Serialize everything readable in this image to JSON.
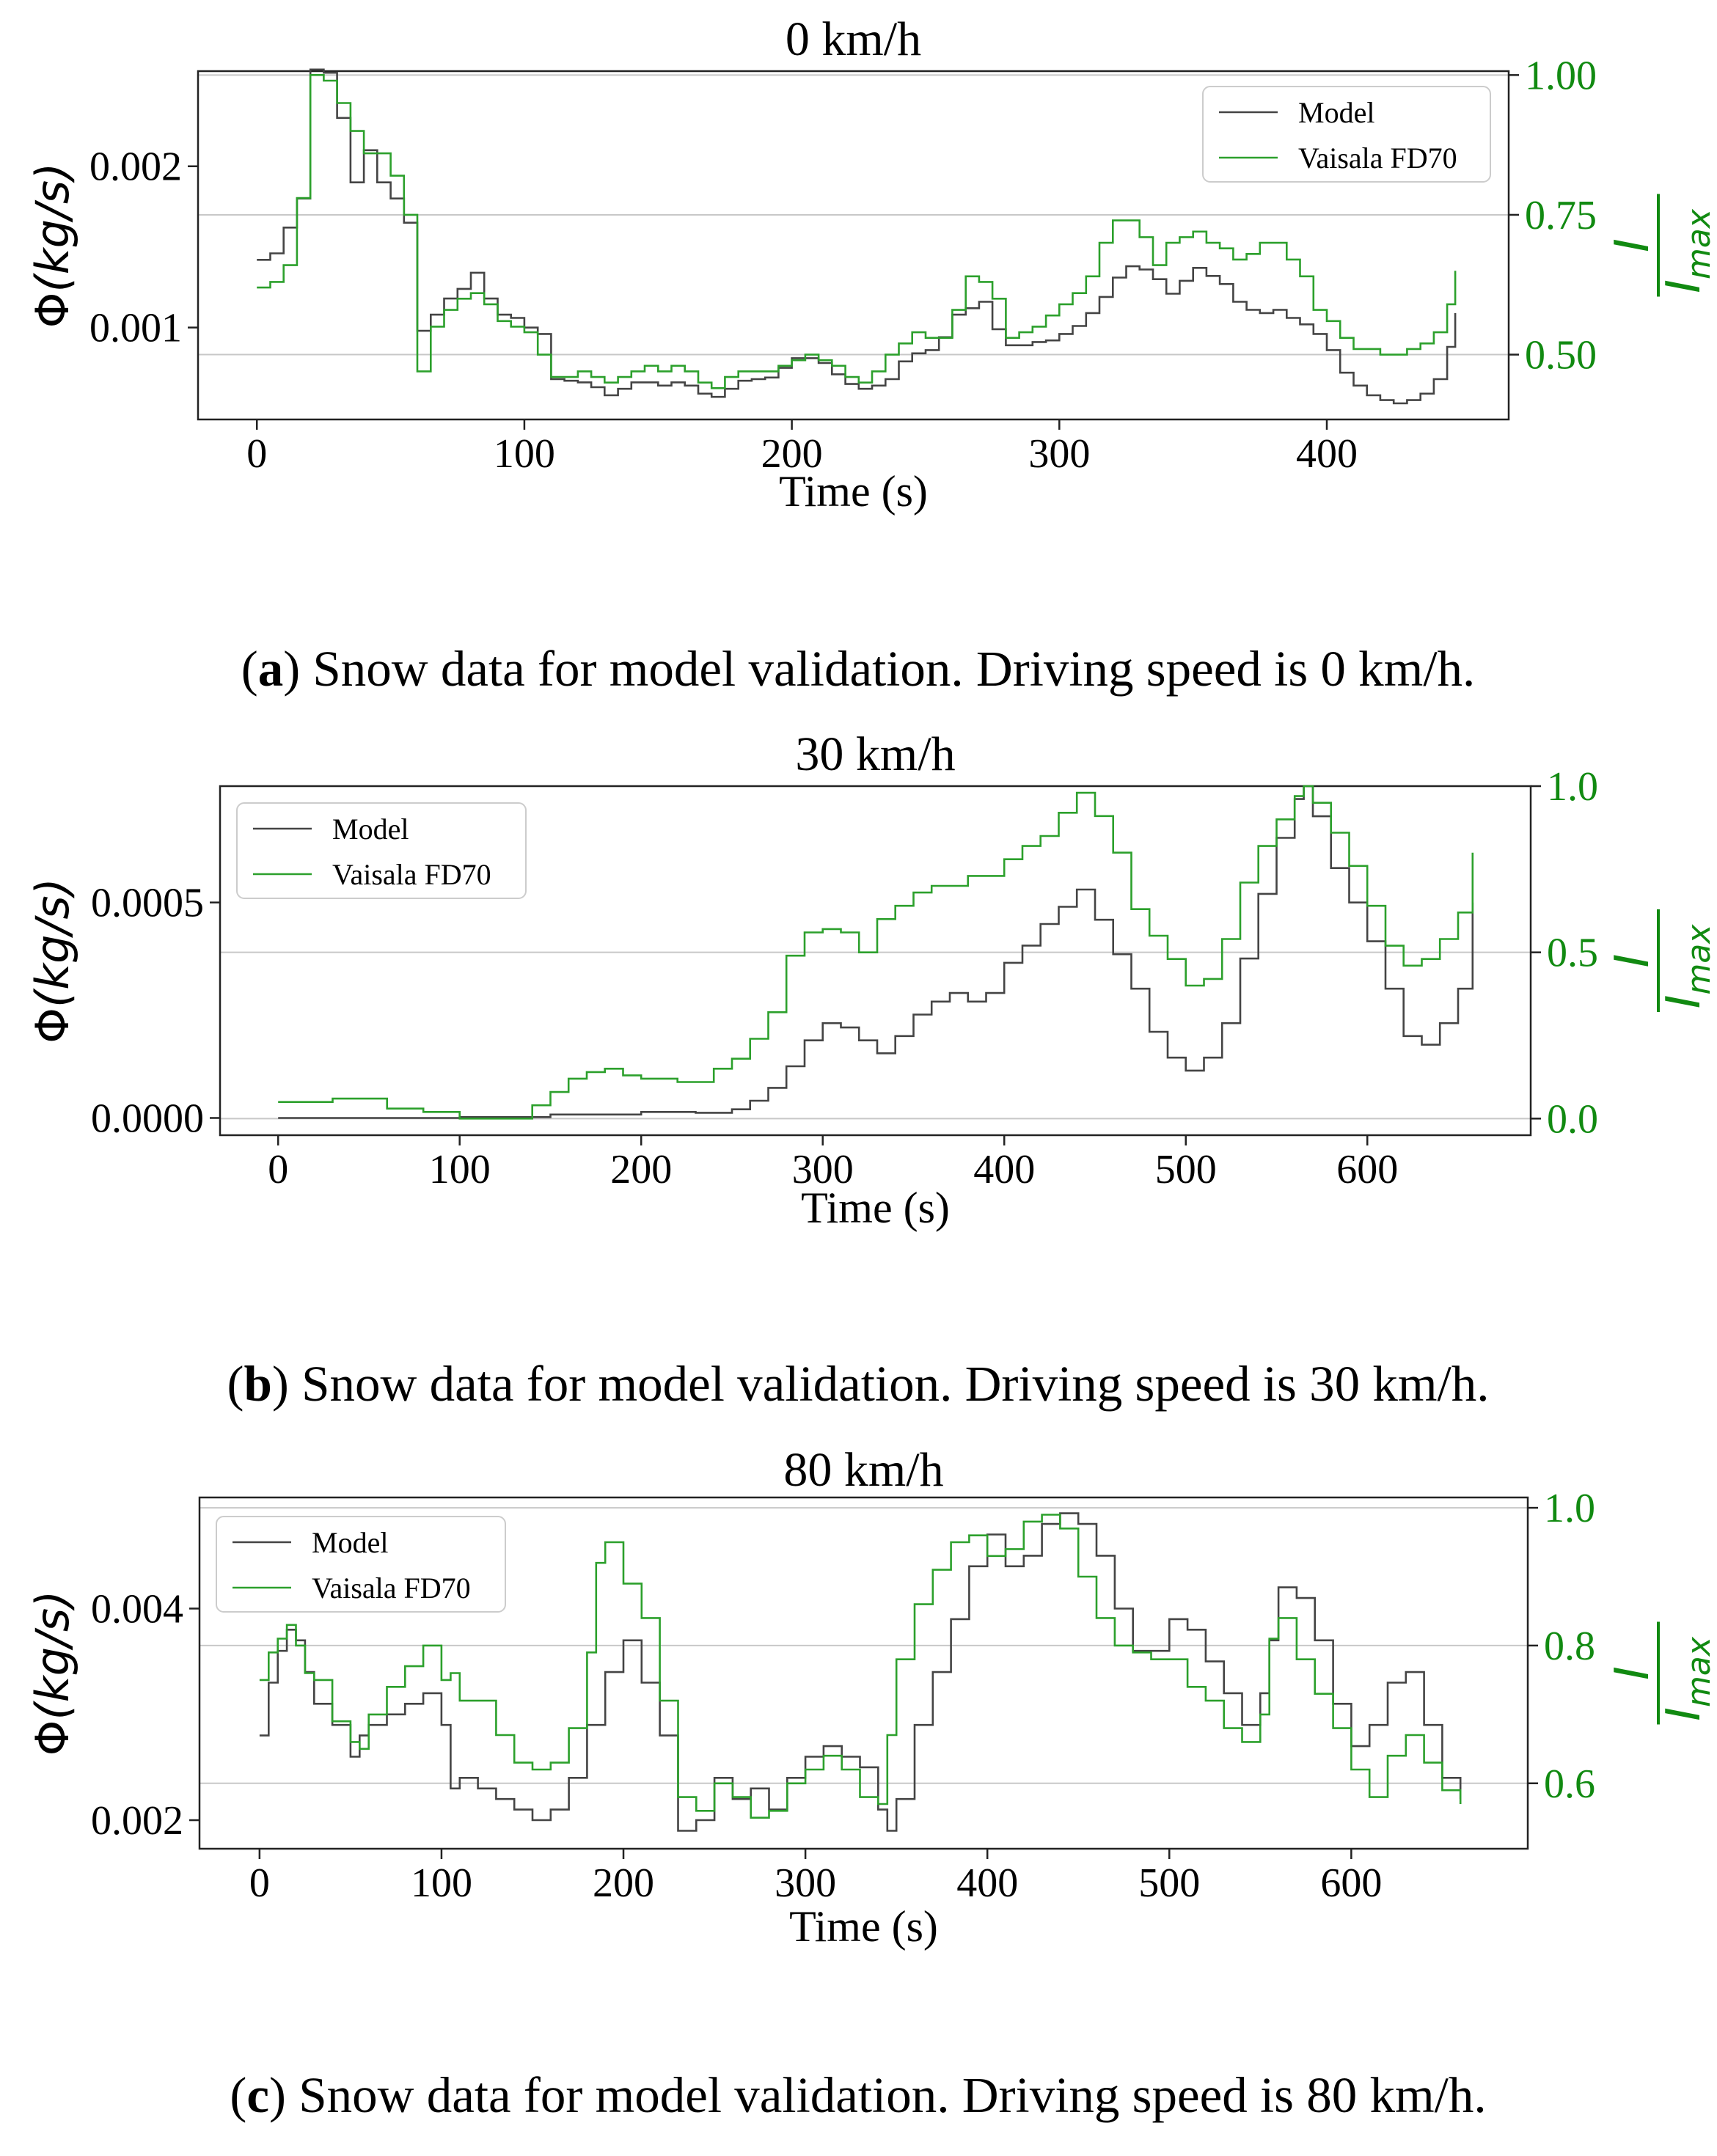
{
  "colors": {
    "model": "#444444",
    "vaisala": "#2ca02c",
    "right_axis": "#118a11",
    "grid": "#c8c8c8"
  },
  "chart_data": [
    {
      "type": "line",
      "title": "0 km/h",
      "xlabel": "Time (s)",
      "ylabel_phi": "Φ",
      "ylabel_unit": "(kg/s)",
      "right_label_num": "I",
      "right_label_den": "I",
      "right_label_sub": "max",
      "caption_label": "a",
      "caption_text": ") Snow data for model validation. Driving speed is 0 km/h.",
      "caption_open": "(",
      "xlim": [
        -22,
        468
      ],
      "ylim": [
        0.00043,
        0.00259
      ],
      "y2lim": [
        0.384,
        1.007
      ],
      "xticks": [
        0,
        100,
        200,
        300,
        400
      ],
      "xtick_labels": [
        "0",
        "100",
        "200",
        "300",
        "400"
      ],
      "yticks": [
        0.001,
        0.002
      ],
      "ytick_labels": [
        "0.001",
        "0.002"
      ],
      "y2ticks": [
        0.5,
        0.75,
        1.0
      ],
      "y2tick_labels": [
        "0.50",
        "0.75",
        "1.00"
      ],
      "legend_position": "upper right",
      "series": [
        {
          "name": "Model",
          "axis": "left",
          "x": [
            0,
            5,
            10,
            15,
            20,
            25,
            30,
            35,
            40,
            45,
            50,
            55,
            60,
            65,
            70,
            75,
            80,
            85,
            90,
            95,
            100,
            105,
            110,
            115,
            120,
            125,
            130,
            135,
            140,
            145,
            150,
            155,
            160,
            165,
            170,
            175,
            180,
            185,
            190,
            195,
            200,
            205,
            210,
            215,
            220,
            225,
            230,
            235,
            240,
            245,
            250,
            255,
            260,
            265,
            270,
            275,
            280,
            285,
            290,
            295,
            300,
            305,
            310,
            315,
            320,
            325,
            330,
            335,
            340,
            345,
            350,
            355,
            360,
            365,
            370,
            375,
            380,
            385,
            390,
            395,
            400,
            405,
            410,
            415,
            420,
            425,
            430,
            435,
            440,
            445,
            448
          ],
          "y": [
            0.00142,
            0.00146,
            0.00162,
            0.0018,
            0.0026,
            0.00258,
            0.0023,
            0.0019,
            0.0021,
            0.0019,
            0.0018,
            0.00165,
            0.00098,
            0.00108,
            0.00118,
            0.00124,
            0.00134,
            0.00118,
            0.00108,
            0.00106,
            0.001,
            0.00096,
            0.00068,
            0.00067,
            0.00066,
            0.00063,
            0.00058,
            0.00062,
            0.00066,
            0.00066,
            0.00064,
            0.00066,
            0.00064,
            0.00059,
            0.00057,
            0.00062,
            0.00067,
            0.00068,
            0.00069,
            0.00075,
            0.00081,
            0.00081,
            0.00078,
            0.00071,
            0.00065,
            0.00062,
            0.00064,
            0.00068,
            0.00079,
            0.00084,
            0.00086,
            0.00094,
            0.00108,
            0.00112,
            0.00116,
            0.00099,
            0.00089,
            0.00089,
            0.00091,
            0.00092,
            0.00096,
            0.00101,
            0.00109,
            0.00119,
            0.00131,
            0.00138,
            0.00136,
            0.0013,
            0.00121,
            0.00129,
            0.00137,
            0.00132,
            0.00127,
            0.00116,
            0.00111,
            0.00109,
            0.00111,
            0.00106,
            0.00102,
            0.00096,
            0.00086,
            0.00072,
            0.00064,
            0.00058,
            0.00055,
            0.00053,
            0.00055,
            0.00059,
            0.00068,
            0.00088,
            0.00109
          ]
        },
        {
          "name": "Vaisala FD70",
          "axis": "right",
          "x": [
            0,
            5,
            10,
            15,
            20,
            25,
            30,
            35,
            40,
            45,
            50,
            55,
            60,
            65,
            70,
            75,
            80,
            85,
            90,
            95,
            100,
            105,
            110,
            115,
            120,
            125,
            130,
            135,
            140,
            145,
            150,
            155,
            160,
            165,
            170,
            175,
            180,
            185,
            190,
            195,
            200,
            205,
            210,
            215,
            220,
            225,
            230,
            235,
            240,
            245,
            250,
            255,
            260,
            265,
            270,
            275,
            280,
            285,
            290,
            295,
            300,
            305,
            310,
            315,
            320,
            325,
            330,
            335,
            340,
            345,
            350,
            355,
            360,
            365,
            370,
            375,
            380,
            385,
            390,
            395,
            400,
            405,
            410,
            415,
            420,
            425,
            430,
            435,
            440,
            445,
            448
          ],
          "y": [
            0.62,
            0.63,
            0.66,
            0.78,
            1.0,
            0.99,
            0.95,
            0.9,
            0.86,
            0.86,
            0.82,
            0.75,
            0.47,
            0.55,
            0.58,
            0.6,
            0.61,
            0.59,
            0.56,
            0.55,
            0.54,
            0.5,
            0.46,
            0.46,
            0.47,
            0.46,
            0.45,
            0.46,
            0.47,
            0.48,
            0.47,
            0.48,
            0.47,
            0.45,
            0.44,
            0.46,
            0.47,
            0.47,
            0.47,
            0.48,
            0.49,
            0.5,
            0.49,
            0.48,
            0.46,
            0.45,
            0.47,
            0.5,
            0.52,
            0.54,
            0.53,
            0.53,
            0.58,
            0.64,
            0.63,
            0.6,
            0.53,
            0.54,
            0.55,
            0.57,
            0.59,
            0.61,
            0.64,
            0.7,
            0.74,
            0.74,
            0.71,
            0.66,
            0.7,
            0.71,
            0.72,
            0.7,
            0.69,
            0.67,
            0.68,
            0.7,
            0.7,
            0.67,
            0.64,
            0.58,
            0.56,
            0.53,
            0.51,
            0.51,
            0.5,
            0.5,
            0.51,
            0.52,
            0.54,
            0.59,
            0.65
          ]
        }
      ]
    },
    {
      "type": "line",
      "title": "30 km/h",
      "xlabel": "Time (s)",
      "ylabel_phi": "Φ",
      "ylabel_unit": "(kg/s)",
      "right_label_num": "I",
      "right_label_den": "I",
      "right_label_sub": "max",
      "caption_label": "b",
      "caption_text": ") Snow data for model validation. Driving speed is 30 km/h.",
      "caption_open": "(",
      "xlim": [
        -32,
        690
      ],
      "ylim": [
        -4e-05,
        0.00077
      ],
      "y2lim": [
        -0.05,
        1.0
      ],
      "xticks": [
        0,
        100,
        200,
        300,
        400,
        500,
        600
      ],
      "xtick_labels": [
        "0",
        "100",
        "200",
        "300",
        "400",
        "500",
        "600"
      ],
      "yticks": [
        0.0,
        0.0005
      ],
      "ytick_labels": [
        "0.0000",
        "0.0005"
      ],
      "y2ticks": [
        0.0,
        0.5,
        1.0
      ],
      "y2tick_labels": [
        "0.0",
        "0.5",
        "1.0"
      ],
      "legend_position": "upper left",
      "series": [
        {
          "name": "Model",
          "axis": "left",
          "x": [
            0,
            50,
            100,
            150,
            200,
            230,
            250,
            260,
            270,
            280,
            290,
            300,
            310,
            320,
            330,
            340,
            350,
            360,
            370,
            380,
            390,
            400,
            410,
            420,
            430,
            440,
            450,
            460,
            470,
            480,
            490,
            500,
            510,
            520,
            530,
            540,
            550,
            560,
            565,
            570,
            580,
            590,
            600,
            610,
            620,
            630,
            640,
            650,
            658
          ],
          "y": [
            0.0,
            0.0,
            2e-06,
            8e-06,
            1.4e-05,
            1.2e-05,
            2e-05,
            4e-05,
            7e-05,
            0.00012,
            0.00018,
            0.00022,
            0.00021,
            0.00018,
            0.00015,
            0.00019,
            0.00024,
            0.00027,
            0.00029,
            0.00027,
            0.00029,
            0.00036,
            0.0004,
            0.00045,
            0.00049,
            0.00053,
            0.00046,
            0.00038,
            0.0003,
            0.0002,
            0.00014,
            0.00011,
            0.00014,
            0.00022,
            0.00037,
            0.00052,
            0.00065,
            0.00074,
            0.00077,
            0.0007,
            0.00058,
            0.0005,
            0.00041,
            0.0003,
            0.00019,
            0.00017,
            0.00022,
            0.0003,
            0.0005
          ]
        },
        {
          "name": "Vaisala FD70",
          "axis": "right",
          "x": [
            0,
            30,
            60,
            80,
            100,
            120,
            140,
            150,
            160,
            170,
            180,
            190,
            200,
            210,
            220,
            240,
            250,
            260,
            270,
            280,
            290,
            300,
            310,
            320,
            330,
            340,
            350,
            360,
            380,
            400,
            410,
            420,
            430,
            440,
            450,
            460,
            470,
            480,
            490,
            500,
            510,
            520,
            530,
            540,
            550,
            560,
            565,
            570,
            580,
            590,
            600,
            610,
            620,
            630,
            640,
            650,
            658
          ],
          "y": [
            0.05,
            0.06,
            0.03,
            0.02,
            0.0,
            0.0,
            0.04,
            0.08,
            0.12,
            0.14,
            0.15,
            0.13,
            0.12,
            0.12,
            0.11,
            0.15,
            0.18,
            0.24,
            0.32,
            0.49,
            0.56,
            0.57,
            0.56,
            0.5,
            0.6,
            0.64,
            0.68,
            0.7,
            0.73,
            0.78,
            0.82,
            0.85,
            0.92,
            0.98,
            0.91,
            0.8,
            0.63,
            0.55,
            0.48,
            0.4,
            0.42,
            0.54,
            0.71,
            0.82,
            0.9,
            0.97,
            1.0,
            0.95,
            0.86,
            0.76,
            0.64,
            0.52,
            0.46,
            0.48,
            0.54,
            0.62,
            0.8
          ]
        }
      ]
    },
    {
      "type": "line",
      "title": "80 km/h",
      "xlabel": "Time (s)",
      "ylabel_phi": "Φ",
      "ylabel_unit": "(kg/s)",
      "right_label_num": "I",
      "right_label_den": "I",
      "right_label_sub": "max",
      "caption_label": "c",
      "caption_text": ") Snow data for model validation. Driving speed is 80 km/h.",
      "caption_open": "(",
      "xlim": [
        -33,
        697
      ],
      "ylim": [
        0.00173,
        0.00505
      ],
      "y2lim": [
        0.505,
        1.015
      ],
      "xticks": [
        0,
        100,
        200,
        300,
        400,
        500,
        600
      ],
      "xtick_labels": [
        "0",
        "100",
        "200",
        "300",
        "400",
        "500",
        "600"
      ],
      "yticks": [
        0.002,
        0.004
      ],
      "ytick_labels": [
        "0.002",
        "0.004"
      ],
      "y2ticks": [
        0.6,
        0.8,
        1.0
      ],
      "y2tick_labels": [
        "0.6",
        "0.8",
        "1.0"
      ],
      "legend_position": "upper left",
      "series": [
        {
          "name": "Model",
          "axis": "left",
          "x": [
            0,
            5,
            10,
            15,
            20,
            25,
            30,
            40,
            50,
            55,
            60,
            70,
            80,
            90,
            100,
            105,
            110,
            120,
            130,
            140,
            150,
            160,
            170,
            180,
            190,
            200,
            210,
            220,
            230,
            240,
            250,
            260,
            270,
            280,
            290,
            300,
            310,
            320,
            330,
            340,
            345,
            350,
            360,
            370,
            380,
            390,
            400,
            410,
            420,
            430,
            440,
            450,
            460,
            470,
            480,
            490,
            500,
            510,
            520,
            530,
            540,
            550,
            555,
            560,
            570,
            580,
            590,
            600,
            610,
            620,
            630,
            640,
            650,
            660
          ],
          "y": [
            0.0028,
            0.0033,
            0.0036,
            0.0038,
            0.0037,
            0.0034,
            0.0031,
            0.0029,
            0.0026,
            0.0028,
            0.0029,
            0.003,
            0.0031,
            0.0032,
            0.0029,
            0.0023,
            0.0024,
            0.0023,
            0.0022,
            0.0021,
            0.002,
            0.0021,
            0.0024,
            0.0029,
            0.0034,
            0.0037,
            0.0033,
            0.0028,
            0.0019,
            0.002,
            0.0024,
            0.0022,
            0.0023,
            0.0021,
            0.0024,
            0.0026,
            0.0027,
            0.0026,
            0.0025,
            0.0021,
            0.0019,
            0.0022,
            0.0029,
            0.0034,
            0.0039,
            0.0044,
            0.0047,
            0.0044,
            0.0045,
            0.0048,
            0.0049,
            0.0048,
            0.0045,
            0.004,
            0.0036,
            0.0036,
            0.0039,
            0.0038,
            0.0035,
            0.0032,
            0.0029,
            0.0032,
            0.0037,
            0.0042,
            0.0041,
            0.0037,
            0.0031,
            0.0027,
            0.0029,
            0.0033,
            0.0034,
            0.0029,
            0.0024,
            0.0022
          ]
        },
        {
          "name": "Vaisala FD70",
          "axis": "right",
          "x": [
            0,
            5,
            10,
            15,
            20,
            25,
            30,
            40,
            50,
            55,
            60,
            70,
            80,
            90,
            100,
            105,
            110,
            120,
            130,
            140,
            150,
            160,
            170,
            180,
            185,
            190,
            200,
            210,
            220,
            230,
            240,
            250,
            260,
            270,
            280,
            290,
            300,
            310,
            320,
            330,
            340,
            345,
            350,
            360,
            370,
            380,
            390,
            400,
            410,
            420,
            430,
            440,
            450,
            460,
            470,
            480,
            490,
            500,
            510,
            520,
            530,
            540,
            550,
            555,
            560,
            570,
            580,
            590,
            600,
            610,
            620,
            630,
            640,
            650,
            660
          ],
          "y": [
            0.75,
            0.79,
            0.81,
            0.83,
            0.8,
            0.76,
            0.75,
            0.69,
            0.66,
            0.65,
            0.7,
            0.74,
            0.77,
            0.8,
            0.75,
            0.76,
            0.72,
            0.72,
            0.67,
            0.63,
            0.62,
            0.63,
            0.68,
            0.79,
            0.92,
            0.95,
            0.89,
            0.84,
            0.72,
            0.58,
            0.56,
            0.6,
            0.58,
            0.55,
            0.56,
            0.6,
            0.62,
            0.64,
            0.62,
            0.58,
            0.57,
            0.67,
            0.78,
            0.86,
            0.91,
            0.95,
            0.96,
            0.93,
            0.94,
            0.98,
            0.99,
            0.97,
            0.9,
            0.84,
            0.8,
            0.79,
            0.78,
            0.78,
            0.74,
            0.72,
            0.68,
            0.66,
            0.7,
            0.81,
            0.84,
            0.78,
            0.73,
            0.68,
            0.62,
            0.58,
            0.64,
            0.67,
            0.63,
            0.59,
            0.57
          ]
        }
      ]
    }
  ]
}
